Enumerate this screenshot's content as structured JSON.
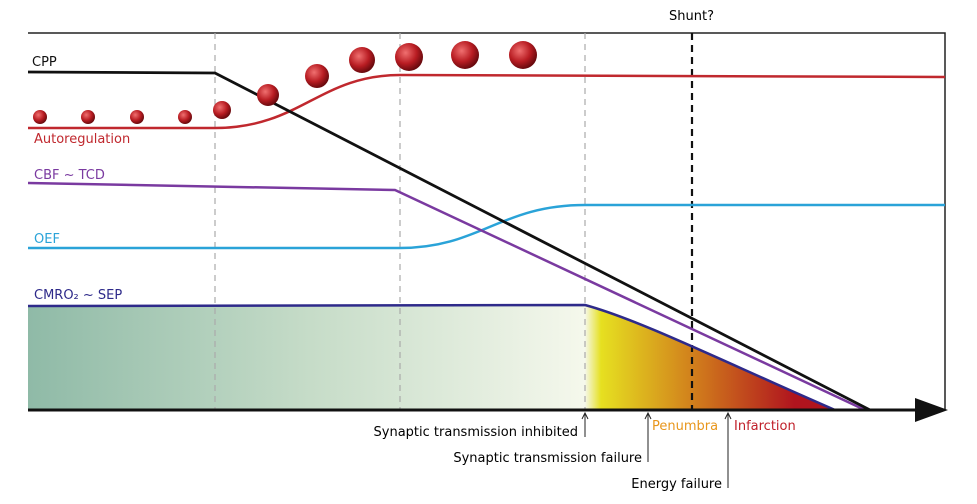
{
  "labels": {
    "cpp": "CPP",
    "autoregulation": "Autoregulation",
    "cbf": "CBF ~ TCD",
    "oef": "OEF",
    "cmro2": "CMRO₂ ~ SEP",
    "shunt": "Shunt?"
  },
  "annotations": {
    "inhibited": "Synaptic transmission inhibited",
    "failure": "Synaptic transmission failure",
    "penumbra": "Penumbra",
    "infarction": "Infarction",
    "energy": "Energy failure"
  }
}
